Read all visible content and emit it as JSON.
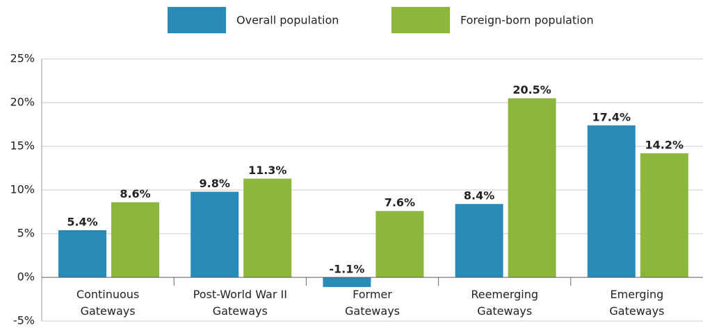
{
  "chart_data": {
    "type": "bar",
    "categories": [
      "Continuous Gateways",
      "Post-World War II Gateways",
      "Former Gateways",
      "Reemerging Gateways",
      "Emerging Gateways"
    ],
    "series": [
      {
        "name": "Overall population",
        "color": "#2a8ab8",
        "values": [
          5.4,
          9.8,
          -1.1,
          8.4,
          17.4
        ],
        "value_labels": [
          "5.4%",
          "9.8%",
          "-1.1%",
          "8.4%",
          "17.4%"
        ]
      },
      {
        "name": "Foreign-born population",
        "color": "#8db63c",
        "values": [
          8.6,
          11.3,
          7.6,
          20.5,
          14.2
        ],
        "value_labels": [
          "8.6%",
          "11.3%",
          "7.6%",
          "20.5%",
          "14.2%"
        ]
      }
    ],
    "ylim": [
      -5,
      25
    ],
    "yticks": [
      {
        "value": -5,
        "label": "-5%"
      },
      {
        "value": 0,
        "label": "0%"
      },
      {
        "value": 5,
        "label": "5%"
      },
      {
        "value": 10,
        "label": "10%"
      },
      {
        "value": 15,
        "label": "15%"
      },
      {
        "value": 20,
        "label": "20%"
      },
      {
        "value": 25,
        "label": "25%"
      }
    ],
    "grid": true,
    "legend": "top"
  }
}
